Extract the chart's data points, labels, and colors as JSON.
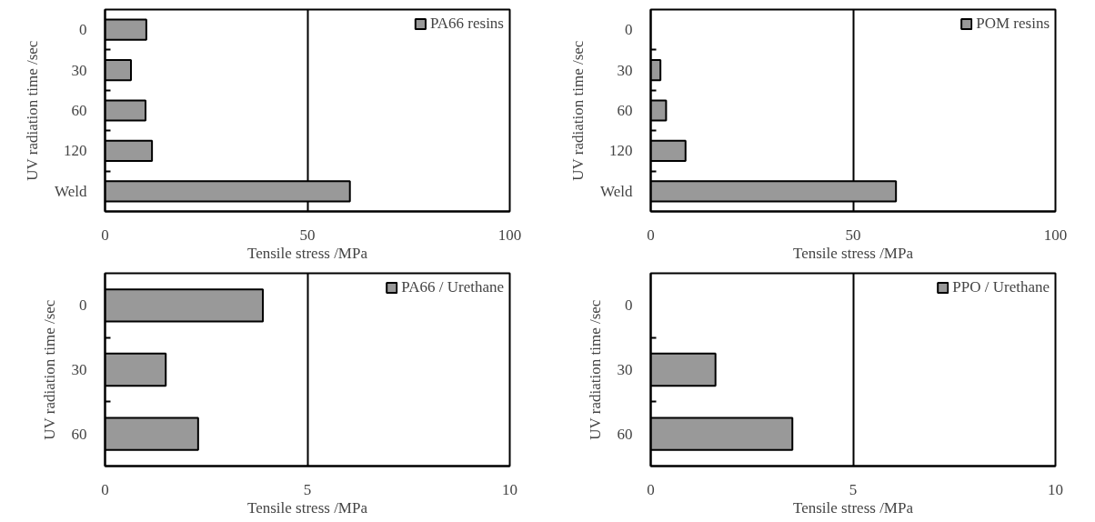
{
  "chart_data": [
    {
      "type": "bar",
      "orientation": "horizontal",
      "categories": [
        "0",
        "30",
        "60",
        "120",
        "Weld"
      ],
      "xlabel": "Tensile stress /MPa",
      "ylabel": "UV radiation time /sec",
      "xlim": [
        0,
        100
      ],
      "xticks": [
        0,
        50,
        100
      ],
      "grid": "x",
      "legend": "top right",
      "series": [
        {
          "name": "PA66 resins",
          "color": "#999999",
          "values": [
            10.2,
            6.4,
            10.0,
            11.6,
            60.5
          ]
        }
      ]
    },
    {
      "type": "bar",
      "orientation": "horizontal",
      "categories": [
        "0",
        "30",
        "60",
        "120",
        "Weld"
      ],
      "xlabel": "Tensile stress /MPa",
      "ylabel": "UV radiation time /sec",
      "xlim": [
        0,
        100
      ],
      "xticks": [
        0,
        50,
        100
      ],
      "grid": "x",
      "legend": "top right",
      "series": [
        {
          "name": "POM resins",
          "color": "#999999",
          "values": [
            null,
            2.4,
            3.8,
            8.6,
            60.6
          ]
        }
      ]
    },
    {
      "type": "bar",
      "orientation": "horizontal",
      "categories": [
        "0",
        "30",
        "60"
      ],
      "xlabel": "Tensile stress /MPa",
      "ylabel": "UV radiation time /sec",
      "xlim": [
        0,
        10
      ],
      "xticks": [
        0,
        5,
        10
      ],
      "grid": "x",
      "legend": "top right",
      "series": [
        {
          "name": "PA66 / Urethane",
          "color": "#999999",
          "values": [
            3.9,
            1.5,
            2.3
          ]
        }
      ]
    },
    {
      "type": "bar",
      "orientation": "horizontal",
      "categories": [
        "0",
        "30",
        "60"
      ],
      "xlabel": "Tensile stress /MPa",
      "ylabel": "UV radiation time /sec",
      "xlim": [
        0,
        10
      ],
      "xticks": [
        0,
        5,
        10
      ],
      "grid": "x",
      "legend": "top right",
      "series": [
        {
          "name": "PPO / Urethane",
          "color": "#999999",
          "values": [
            null,
            1.6,
            3.5
          ]
        }
      ]
    }
  ]
}
